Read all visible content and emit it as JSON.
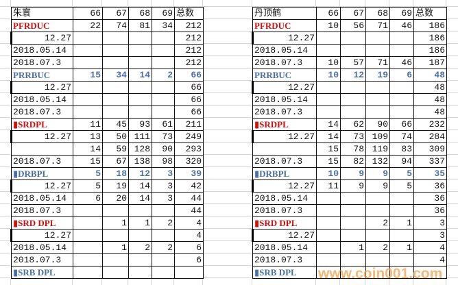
{
  "tables": [
    {
      "title": "朱寰",
      "headers": [
        "66",
        "67",
        "68",
        "69",
        "总数"
      ],
      "rows": [
        {
          "style": "red",
          "cells": [
            "PFRDUC",
            "22",
            "74",
            "81",
            "34",
            "212"
          ]
        },
        {
          "style": "date",
          "cells": [
            "12.27",
            "",
            "",
            "",
            "",
            "212"
          ]
        },
        {
          "style": "",
          "cells": [
            "2018.05.14",
            "",
            "",
            "",
            "",
            "212"
          ]
        },
        {
          "style": "",
          "cells": [
            "2018.07.3",
            "",
            "",
            "",
            "",
            "212"
          ]
        },
        {
          "style": "blue",
          "cells": [
            "PRRBUC",
            "15",
            "34",
            "14",
            "2",
            "66"
          ]
        },
        {
          "style": "date",
          "cells": [
            "12.27",
            "",
            "",
            "",
            "",
            "66"
          ]
        },
        {
          "style": "",
          "cells": [
            "2018.05.14",
            "",
            "",
            "",
            "",
            "66"
          ]
        },
        {
          "style": "",
          "cells": [
            "2018.07.3",
            "",
            "",
            "",
            "",
            "66"
          ]
        },
        {
          "style": "red",
          "cells": [
            "▮SRDPL",
            "11",
            "45",
            "93",
            "61",
            "211"
          ]
        },
        {
          "style": "date",
          "cells": [
            "12.27",
            "13",
            "50",
            "111",
            "73",
            "249"
          ]
        },
        {
          "style": "",
          "cells": [
            "",
            "14",
            "59",
            "128",
            "90",
            "293"
          ]
        },
        {
          "style": "",
          "cells": [
            "2018.07.3",
            "15",
            "67",
            "138",
            "98",
            "320"
          ]
        },
        {
          "style": "blue",
          "cells": [
            "▮DRBPL",
            "5",
            "18",
            "12",
            "3",
            "39"
          ]
        },
        {
          "style": "date",
          "cells": [
            "12.27",
            "5",
            "19",
            "14",
            "3",
            "42"
          ]
        },
        {
          "style": "",
          "cells": [
            "2018.05.14",
            "6",
            "20",
            "14",
            "3",
            "44"
          ]
        },
        {
          "style": "",
          "cells": [
            "2018.07.3",
            "",
            "",
            "",
            "",
            "44"
          ]
        },
        {
          "style": "red",
          "cells": [
            "▮SRD DPL",
            "",
            "1",
            "1",
            "2",
            "4"
          ]
        },
        {
          "style": "date",
          "cells": [
            "12.27",
            "",
            "",
            "",
            "",
            "4"
          ]
        },
        {
          "style": "",
          "cells": [
            "2018.05.14",
            "",
            "1",
            "2",
            "2",
            "6"
          ]
        },
        {
          "style": "",
          "cells": [
            "2018.07.3",
            "",
            "",
            "",
            "",
            "6"
          ]
        },
        {
          "style": "blue",
          "cells": [
            "▮SRB DPL",
            "",
            "",
            "",
            "",
            ""
          ]
        }
      ]
    },
    {
      "title": "丹顶鹤",
      "headers": [
        "66",
        "67",
        "68",
        "69",
        "总数"
      ],
      "rows": [
        {
          "style": "red",
          "cells": [
            "PFRDUC",
            "10",
            "56",
            "71",
            "46",
            "186"
          ]
        },
        {
          "style": "date",
          "cells": [
            "12.27",
            "",
            "",
            "",
            "",
            "186"
          ]
        },
        {
          "style": "",
          "cells": [
            "2018.05.14",
            "",
            "",
            "",
            "",
            "186"
          ]
        },
        {
          "style": "",
          "cells": [
            "2018.07.3",
            "10",
            "57",
            "71",
            "46",
            "187"
          ]
        },
        {
          "style": "blue",
          "cells": [
            "PRRBUC",
            "10",
            "12",
            "19",
            "6",
            "48"
          ]
        },
        {
          "style": "date",
          "cells": [
            "12.27",
            "",
            "",
            "",
            "",
            "48"
          ]
        },
        {
          "style": "",
          "cells": [
            "2018.05.14",
            "",
            "",
            "",
            "",
            "48"
          ]
        },
        {
          "style": "",
          "cells": [
            "2018.07.3",
            "",
            "",
            "",
            "",
            "48"
          ]
        },
        {
          "style": "red",
          "cells": [
            "▮SRDPL",
            "14",
            "62",
            "90",
            "66",
            "232"
          ]
        },
        {
          "style": "date",
          "cells": [
            "12.27",
            "14",
            "73",
            "109",
            "74",
            "284"
          ]
        },
        {
          "style": "",
          "cells": [
            "",
            "15",
            "78",
            "119",
            "83",
            "309"
          ]
        },
        {
          "style": "",
          "cells": [
            "2018.07.3",
            "15",
            "82",
            "132",
            "94",
            "337"
          ]
        },
        {
          "style": "blue",
          "cells": [
            "▮DRBPL",
            "10",
            "9",
            "9",
            "5",
            "35"
          ]
        },
        {
          "style": "date",
          "cells": [
            "12.27",
            "11",
            "9",
            "9",
            "5",
            "36"
          ]
        },
        {
          "style": "",
          "cells": [
            "2018.05.14",
            "",
            "",
            "",
            "",
            "36"
          ]
        },
        {
          "style": "",
          "cells": [
            "2018.07.3",
            "",
            "",
            "",
            "",
            "36"
          ]
        },
        {
          "style": "red",
          "cells": [
            "▮SRD DPL",
            "",
            "",
            "2",
            "1",
            "3"
          ]
        },
        {
          "style": "date",
          "cells": [
            "12.27",
            "",
            "",
            "",
            "",
            "3"
          ]
        },
        {
          "style": "",
          "cells": [
            "2018.05.14",
            "",
            "1",
            "2",
            "1",
            "4"
          ]
        },
        {
          "style": "",
          "cells": [
            "2018.07.3",
            "",
            "",
            "",
            "",
            "4"
          ]
        },
        {
          "style": "blue",
          "cells": [
            "▮SRB DPL",
            "",
            "",
            "",
            "",
            ""
          ]
        }
      ]
    }
  ],
  "watermark": "www.coin001.com"
}
